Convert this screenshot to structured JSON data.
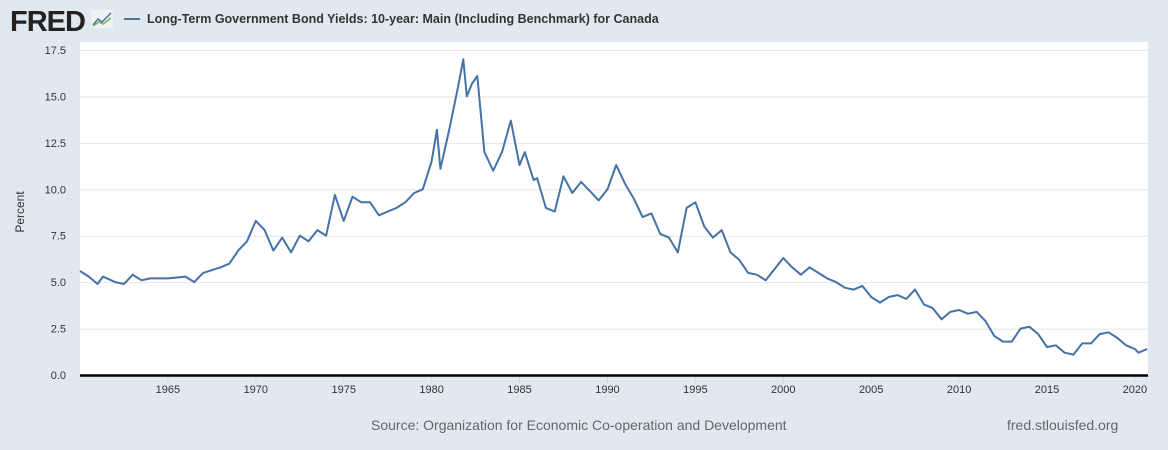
{
  "header": {
    "logo": "FRED",
    "legend_label": "Long-Term Government Bond Yields: 10-year: Main (Including Benchmark) for Canada"
  },
  "footer": {
    "source": "Source: Organization for Economic Co-operation and Development",
    "url": "fred.stlouisfed.org"
  },
  "colors": {
    "line": "#4572a7",
    "background": "#e1e9f0"
  },
  "chart_data": {
    "type": "line",
    "title": "Long-Term Government Bond Yields: 10-year: Main (Including Benchmark) for Canada",
    "xlabel": "",
    "ylabel": "Percent",
    "xlim": [
      1960,
      2020.7
    ],
    "ylim": [
      0,
      17.5
    ],
    "yticks": [
      "0.0",
      "2.5",
      "5.0",
      "7.5",
      "10.0",
      "12.5",
      "15.0",
      "17.5"
    ],
    "xticks": [
      "1965",
      "1970",
      "1975",
      "1980",
      "1985",
      "1990",
      "1995",
      "2000",
      "2005",
      "2010",
      "2015",
      "2020"
    ],
    "grid": true,
    "legend": "top-left",
    "series": [
      {
        "name": "Long-Term Government Bond Yields: 10-year: Main (Including Benchmark) for Canada",
        "x": [
          1960,
          1960.5,
          1961,
          1961.3,
          1962,
          1962.5,
          1963,
          1963.5,
          1964,
          1965,
          1966,
          1966.5,
          1967,
          1968,
          1968.5,
          1969,
          1969.5,
          1970,
          1970.5,
          1971,
          1971.5,
          1972,
          1972.5,
          1973,
          1973.5,
          1974,
          1974.5,
          1975,
          1975.5,
          1976,
          1976.5,
          1977,
          1977.5,
          1978,
          1978.5,
          1979,
          1979.5,
          1980,
          1980.3,
          1980.5,
          1981,
          1981.5,
          1981.8,
          1982,
          1982.3,
          1982.6,
          1983,
          1983.5,
          1984,
          1984.5,
          1985,
          1985.3,
          1985.8,
          1986,
          1986.5,
          1987,
          1987.5,
          1988,
          1988.5,
          1989,
          1989.5,
          1990,
          1990.5,
          1991,
          1991.5,
          1992,
          1992.5,
          1993,
          1993.5,
          1994,
          1994.5,
          1995,
          1995.5,
          1996,
          1996.5,
          1997,
          1997.5,
          1998,
          1998.5,
          1999,
          1999.5,
          2000,
          2000.5,
          2001,
          2001.5,
          2002,
          2002.5,
          2003,
          2003.5,
          2004,
          2004.5,
          2005,
          2005.5,
          2006,
          2006.5,
          2007,
          2007.5,
          2008,
          2008.5,
          2009,
          2009.5,
          2010,
          2010.5,
          2011,
          2011.5,
          2012,
          2012.5,
          2013,
          2013.5,
          2014,
          2014.5,
          2015,
          2015.5,
          2016,
          2016.5,
          2017,
          2017.5,
          2018,
          2018.5,
          2019,
          2019.5,
          2020,
          2020.2,
          2020.7
        ],
        "values": [
          5.6,
          5.3,
          4.9,
          5.3,
          5.0,
          4.9,
          5.4,
          5.1,
          5.2,
          5.2,
          5.3,
          5.0,
          5.5,
          5.8,
          6.0,
          6.7,
          7.2,
          8.3,
          7.8,
          6.7,
          7.4,
          6.6,
          7.5,
          7.2,
          7.8,
          7.5,
          9.7,
          8.3,
          9.6,
          9.3,
          9.3,
          8.6,
          8.8,
          9.0,
          9.3,
          9.8,
          10.0,
          11.5,
          13.2,
          11.1,
          13.2,
          15.5,
          17.0,
          15.0,
          15.7,
          16.1,
          12.0,
          11.0,
          12.0,
          13.7,
          11.3,
          12.0,
          10.5,
          10.6,
          9.0,
          8.8,
          10.7,
          9.8,
          10.4,
          9.9,
          9.4,
          10.0,
          11.3,
          10.3,
          9.5,
          8.5,
          8.7,
          7.6,
          7.4,
          6.6,
          9.0,
          9.3,
          8.0,
          7.4,
          7.8,
          6.6,
          6.2,
          5.5,
          5.4,
          5.1,
          5.7,
          6.3,
          5.8,
          5.4,
          5.8,
          5.5,
          5.2,
          5.0,
          4.7,
          4.6,
          4.8,
          4.2,
          3.9,
          4.2,
          4.3,
          4.1,
          4.6,
          3.8,
          3.6,
          3.0,
          3.4,
          3.5,
          3.3,
          3.4,
          2.9,
          2.1,
          1.8,
          1.8,
          2.5,
          2.6,
          2.2,
          1.5,
          1.6,
          1.2,
          1.1,
          1.7,
          1.7,
          2.2,
          2.3,
          2.0,
          1.6,
          1.4,
          1.2,
          1.4
        ]
      }
    ]
  }
}
